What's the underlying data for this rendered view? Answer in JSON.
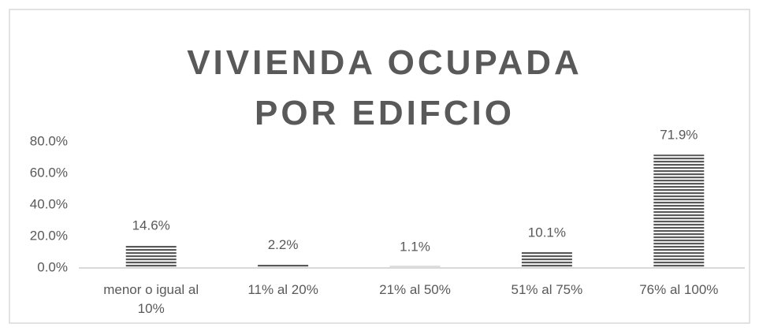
{
  "chart_data": {
    "type": "bar",
    "title": "VIVIENDA OCUPADA POR EDIFCIO",
    "categories": [
      "menor o igual al 10%",
      "11% al 20%",
      "21% al 50%",
      "51% al 75%",
      "76% al 100%"
    ],
    "values": [
      14.6,
      2.2,
      1.1,
      10.1,
      71.9
    ],
    "value_labels": [
      "14.6%",
      "2.2%",
      "1.1%",
      "10.1%",
      "71.9%"
    ],
    "color": "#595959",
    "ylim": [
      0,
      80
    ],
    "yticks": [
      {
        "value": 0,
        "label": "0.0%"
      },
      {
        "value": 20,
        "label": "20.0%"
      },
      {
        "value": 40,
        "label": "40.0%"
      },
      {
        "value": 60,
        "label": "60.0%"
      },
      {
        "value": 80,
        "label": "80.0%"
      }
    ],
    "grid": false
  }
}
